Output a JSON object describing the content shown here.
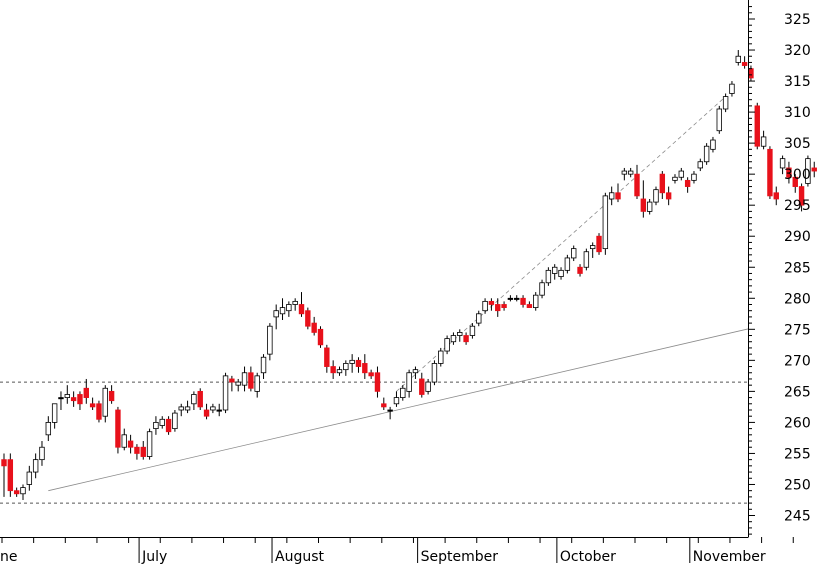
{
  "chart_data": {
    "type": "candlestick",
    "title": "",
    "xlabel": "",
    "ylabel": "",
    "ylim": [
      240,
      328
    ],
    "y_ticks": [
      245,
      250,
      255,
      260,
      265,
      270,
      275,
      280,
      285,
      290,
      295,
      300,
      305,
      310,
      315,
      320,
      325
    ],
    "month_labels": [
      "June",
      "July",
      "August",
      "September",
      "October",
      "November"
    ],
    "axis_side": "right",
    "grid": false,
    "colors": {
      "up": "#ffffff",
      "down": "#e8111b",
      "doji": "#000000",
      "outline": "#000000",
      "reference": "#555555"
    },
    "horizontal_levels": [
      266.5,
      247
    ],
    "trendlines": [
      {
        "from": [
          "Jun 10",
          249
        ],
        "to": [
          "Nov 29",
          278
        ]
      },
      {
        "from": [
          "Aug 26",
          265
        ],
        "to": [
          "Nov 08",
          312.5
        ]
      }
    ],
    "candles": [
      {
        "date": "Jun 01",
        "o": 254,
        "h": 255,
        "l": 248,
        "c": 253
      },
      {
        "date": "Jun 02",
        "o": 254,
        "h": 255,
        "l": 248,
        "c": 249
      },
      {
        "date": "Jun 03",
        "o": 249,
        "h": 249.5,
        "l": 248,
        "c": 248.5
      },
      {
        "date": "Jun 06",
        "o": 248.5,
        "h": 250,
        "l": 247.5,
        "c": 249.5
      },
      {
        "date": "Jun 07",
        "o": 250,
        "h": 253,
        "l": 249,
        "c": 252
      },
      {
        "date": "Jun 08",
        "o": 252,
        "h": 255,
        "l": 251,
        "c": 254
      },
      {
        "date": "Jun 09",
        "o": 254,
        "h": 257,
        "l": 253,
        "c": 256
      },
      {
        "date": "Jun 10",
        "o": 258,
        "h": 261,
        "l": 257,
        "c": 260
      },
      {
        "date": "Jun 13",
        "o": 260,
        "h": 263,
        "l": 259,
        "c": 263
      },
      {
        "date": "Jun 14",
        "o": 264,
        "h": 265,
        "l": 262,
        "c": 264
      },
      {
        "date": "Jun 15",
        "o": 264,
        "h": 266,
        "l": 263,
        "c": 264.5
      },
      {
        "date": "Jun 16",
        "o": 264,
        "h": 265,
        "l": 262.5,
        "c": 263.5
      },
      {
        "date": "Jun 17",
        "o": 264.5,
        "h": 265,
        "l": 262,
        "c": 263
      },
      {
        "date": "Jun 20",
        "o": 265.5,
        "h": 267,
        "l": 263,
        "c": 264
      },
      {
        "date": "Jun 21",
        "o": 263,
        "h": 264,
        "l": 262,
        "c": 262.5
      },
      {
        "date": "Jun 22",
        "o": 263,
        "h": 263.5,
        "l": 260,
        "c": 260.5
      },
      {
        "date": "Jun 23",
        "o": 261,
        "h": 266,
        "l": 260,
        "c": 265.5
      },
      {
        "date": "Jun 24",
        "o": 265,
        "h": 266,
        "l": 263,
        "c": 263.5
      },
      {
        "date": "Jun 27",
        "o": 262,
        "h": 262.5,
        "l": 255,
        "c": 256
      },
      {
        "date": "Jun 28",
        "o": 256,
        "h": 259,
        "l": 255.5,
        "c": 258
      },
      {
        "date": "Jun 29",
        "o": 257,
        "h": 258,
        "l": 255,
        "c": 256
      },
      {
        "date": "Jun 30",
        "o": 256,
        "h": 256.5,
        "l": 254,
        "c": 255
      },
      {
        "date": "Jul 01",
        "o": 256,
        "h": 257,
        "l": 254,
        "c": 254.5
      },
      {
        "date": "Jul 04",
        "o": 254.5,
        "h": 259,
        "l": 254,
        "c": 258.5
      },
      {
        "date": "Jul 05",
        "o": 259,
        "h": 261,
        "l": 258,
        "c": 260
      },
      {
        "date": "Jul 06",
        "o": 259.5,
        "h": 261,
        "l": 259,
        "c": 260.5
      },
      {
        "date": "Jul 07",
        "o": 260.5,
        "h": 261,
        "l": 258,
        "c": 258.5
      },
      {
        "date": "Jul 08",
        "o": 259,
        "h": 262,
        "l": 258.5,
        "c": 261.5
      },
      {
        "date": "Jul 11",
        "o": 262,
        "h": 263,
        "l": 261,
        "c": 262.5
      },
      {
        "date": "Jul 12",
        "o": 262,
        "h": 263.5,
        "l": 261.5,
        "c": 262.5
      },
      {
        "date": "Jul 13",
        "o": 263,
        "h": 265,
        "l": 262,
        "c": 264.5
      },
      {
        "date": "Jul 14",
        "o": 265,
        "h": 265.5,
        "l": 262,
        "c": 262.5
      },
      {
        "date": "Jul 15",
        "o": 262,
        "h": 263,
        "l": 260.5,
        "c": 261
      },
      {
        "date": "Jul 18",
        "o": 262,
        "h": 263,
        "l": 261.5,
        "c": 262.5
      },
      {
        "date": "Jul 19",
        "o": 262,
        "h": 263,
        "l": 261,
        "c": 262
      },
      {
        "date": "Jul 20",
        "o": 262,
        "h": 268,
        "l": 261.5,
        "c": 267.5
      },
      {
        "date": "Jul 21",
        "o": 267,
        "h": 267.5,
        "l": 265,
        "c": 266.5
      },
      {
        "date": "Jul 22",
        "o": 266,
        "h": 267,
        "l": 265,
        "c": 266.5
      },
      {
        "date": "Jul 25",
        "o": 266,
        "h": 269,
        "l": 265,
        "c": 268
      },
      {
        "date": "Jul 26",
        "o": 268,
        "h": 269,
        "l": 265,
        "c": 265.5
      },
      {
        "date": "Jul 27",
        "o": 265,
        "h": 268,
        "l": 264,
        "c": 267.5
      },
      {
        "date": "Jul 28",
        "o": 268,
        "h": 271,
        "l": 267,
        "c": 270.5
      },
      {
        "date": "Jul 29",
        "o": 271,
        "h": 276,
        "l": 270,
        "c": 275.5
      },
      {
        "date": "Aug 01",
        "o": 277,
        "h": 279,
        "l": 275,
        "c": 278
      },
      {
        "date": "Aug 02",
        "o": 277.5,
        "h": 280,
        "l": 276.5,
        "c": 278.5
      },
      {
        "date": "Aug 03",
        "o": 278,
        "h": 279.5,
        "l": 277,
        "c": 279
      },
      {
        "date": "Aug 04",
        "o": 279,
        "h": 280,
        "l": 278,
        "c": 279.5
      },
      {
        "date": "Aug 05",
        "o": 279,
        "h": 281,
        "l": 277,
        "c": 277.5
      },
      {
        "date": "Aug 08",
        "o": 278,
        "h": 278.5,
        "l": 275,
        "c": 275.5
      },
      {
        "date": "Aug 09",
        "o": 276,
        "h": 277,
        "l": 274,
        "c": 274.5
      },
      {
        "date": "Aug 10",
        "o": 275,
        "h": 275.5,
        "l": 272,
        "c": 272.5
      },
      {
        "date": "Aug 11",
        "o": 272,
        "h": 272.5,
        "l": 268,
        "c": 269
      },
      {
        "date": "Aug 12",
        "o": 269,
        "h": 270,
        "l": 267,
        "c": 268
      },
      {
        "date": "Aug 15",
        "o": 268,
        "h": 269,
        "l": 267.5,
        "c": 268.5
      },
      {
        "date": "Aug 16",
        "o": 268.5,
        "h": 270,
        "l": 267.5,
        "c": 269.5
      },
      {
        "date": "Aug 17",
        "o": 269.5,
        "h": 271,
        "l": 268,
        "c": 270
      },
      {
        "date": "Aug 18",
        "o": 270,
        "h": 270.5,
        "l": 268,
        "c": 269
      },
      {
        "date": "Aug 19",
        "o": 269.5,
        "h": 271,
        "l": 267,
        "c": 268
      },
      {
        "date": "Aug 22",
        "o": 268,
        "h": 268.5,
        "l": 267,
        "c": 267.5
      },
      {
        "date": "Aug 23",
        "o": 268,
        "h": 269,
        "l": 264,
        "c": 265
      },
      {
        "date": "Aug 24",
        "o": 263,
        "h": 264,
        "l": 262,
        "c": 262.5
      },
      {
        "date": "Aug 25",
        "o": 262,
        "h": 262.5,
        "l": 260.5,
        "c": 262
      },
      {
        "date": "Aug 26",
        "o": 263,
        "h": 265,
        "l": 262.5,
        "c": 264
      },
      {
        "date": "Aug 29",
        "o": 264,
        "h": 266,
        "l": 263.5,
        "c": 265.5
      },
      {
        "date": "Aug 30",
        "o": 265,
        "h": 268.5,
        "l": 264,
        "c": 268
      },
      {
        "date": "Aug 31",
        "o": 268,
        "h": 269,
        "l": 267,
        "c": 268.5
      },
      {
        "date": "Sep 01",
        "o": 267,
        "h": 268,
        "l": 264,
        "c": 264.5
      },
      {
        "date": "Sep 02",
        "o": 265,
        "h": 267,
        "l": 264.5,
        "c": 266.5
      },
      {
        "date": "Sep 05",
        "o": 266.5,
        "h": 270,
        "l": 266,
        "c": 269.5
      },
      {
        "date": "Sep 06",
        "o": 269.5,
        "h": 272,
        "l": 269,
        "c": 271.5
      },
      {
        "date": "Sep 07",
        "o": 271.5,
        "h": 274,
        "l": 271,
        "c": 273.5
      },
      {
        "date": "Sep 08",
        "o": 273,
        "h": 274.5,
        "l": 272.5,
        "c": 274
      },
      {
        "date": "Sep 09",
        "o": 274,
        "h": 275,
        "l": 273,
        "c": 274.5
      },
      {
        "date": "Sep 12",
        "o": 274,
        "h": 274.5,
        "l": 272.5,
        "c": 273
      },
      {
        "date": "Sep 13",
        "o": 274,
        "h": 276,
        "l": 273.5,
        "c": 275.5
      },
      {
        "date": "Sep 14",
        "o": 276,
        "h": 278,
        "l": 275.5,
        "c": 277.5
      },
      {
        "date": "Sep 15",
        "o": 278,
        "h": 280,
        "l": 277.5,
        "c": 279.5
      },
      {
        "date": "Sep 16",
        "o": 279.5,
        "h": 280,
        "l": 278,
        "c": 279
      },
      {
        "date": "Sep 19",
        "o": 279,
        "h": 280,
        "l": 277,
        "c": 278
      },
      {
        "date": "Sep 20",
        "o": 279,
        "h": 279.5,
        "l": 278,
        "c": 278.5
      },
      {
        "date": "Sep 21",
        "o": 280,
        "h": 280.5,
        "l": 279.5,
        "c": 280
      },
      {
        "date": "Sep 22",
        "o": 280,
        "h": 280.5,
        "l": 279.5,
        "c": 280
      },
      {
        "date": "Sep 23",
        "o": 280,
        "h": 280.5,
        "l": 278.5,
        "c": 279
      },
      {
        "date": "Sep 26",
        "o": 279,
        "h": 279.5,
        "l": 278.5,
        "c": 278.5
      },
      {
        "date": "Sep 27",
        "o": 278.5,
        "h": 281,
        "l": 278,
        "c": 280.5
      },
      {
        "date": "Sep 28",
        "o": 280.5,
        "h": 283,
        "l": 280,
        "c": 282.5
      },
      {
        "date": "Sep 29",
        "o": 282.5,
        "h": 285,
        "l": 282,
        "c": 284.5
      },
      {
        "date": "Sep 30",
        "o": 284,
        "h": 285.5,
        "l": 283,
        "c": 285
      },
      {
        "date": "Oct 03",
        "o": 283.5,
        "h": 285,
        "l": 283,
        "c": 284.5
      },
      {
        "date": "Oct 04",
        "o": 284.5,
        "h": 287,
        "l": 284,
        "c": 286.5
      },
      {
        "date": "Oct 05",
        "o": 286.5,
        "h": 288.5,
        "l": 286,
        "c": 288
      },
      {
        "date": "Oct 06",
        "o": 285,
        "h": 285.5,
        "l": 283.5,
        "c": 284
      },
      {
        "date": "Oct 07",
        "o": 285,
        "h": 288,
        "l": 284.5,
        "c": 287.5
      },
      {
        "date": "Oct 10",
        "o": 288,
        "h": 289,
        "l": 286.5,
        "c": 288.5
      },
      {
        "date": "Oct 11",
        "o": 290,
        "h": 290.5,
        "l": 287,
        "c": 287.5
      },
      {
        "date": "Oct 12",
        "o": 288,
        "h": 297,
        "l": 287,
        "c": 296.5
      },
      {
        "date": "Oct 13",
        "o": 296,
        "h": 298,
        "l": 295,
        "c": 297
      },
      {
        "date": "Oct 14",
        "o": 297,
        "h": 298.5,
        "l": 295.5,
        "c": 296
      },
      {
        "date": "Oct 17",
        "o": 300,
        "h": 301,
        "l": 299,
        "c": 300.5
      },
      {
        "date": "Oct 18",
        "o": 300,
        "h": 301,
        "l": 299.5,
        "c": 300.5
      },
      {
        "date": "Oct 19",
        "o": 300,
        "h": 301.5,
        "l": 296,
        "c": 296.5
      },
      {
        "date": "Oct 20",
        "o": 296,
        "h": 299,
        "l": 293,
        "c": 294
      },
      {
        "date": "Oct 21",
        "o": 294,
        "h": 296,
        "l": 293.5,
        "c": 295.5
      },
      {
        "date": "Oct 24",
        "o": 295.5,
        "h": 298,
        "l": 295,
        "c": 297.5
      },
      {
        "date": "Oct 25",
        "o": 300,
        "h": 300.5,
        "l": 296,
        "c": 297
      },
      {
        "date": "Oct 26",
        "o": 297,
        "h": 298,
        "l": 295,
        "c": 296
      },
      {
        "date": "Oct 27",
        "o": 299,
        "h": 300,
        "l": 298.5,
        "c": 299.5
      },
      {
        "date": "Oct 28",
        "o": 299.5,
        "h": 301,
        "l": 299,
        "c": 300.5
      },
      {
        "date": "Oct 31",
        "o": 299,
        "h": 299.5,
        "l": 297,
        "c": 298
      },
      {
        "date": "Nov 01",
        "o": 299,
        "h": 300.5,
        "l": 298.5,
        "c": 300
      },
      {
        "date": "Nov 02",
        "o": 301,
        "h": 302.5,
        "l": 300.5,
        "c": 302
      },
      {
        "date": "Nov 03",
        "o": 302,
        "h": 305,
        "l": 301.5,
        "c": 304.5
      },
      {
        "date": "Nov 04",
        "o": 304,
        "h": 306,
        "l": 303.5,
        "c": 305.5
      },
      {
        "date": "Nov 07",
        "o": 307,
        "h": 311,
        "l": 306.5,
        "c": 310.5
      },
      {
        "date": "Nov 08",
        "o": 310.5,
        "h": 313,
        "l": 310,
        "c": 312.5
      },
      {
        "date": "Nov 09",
        "o": 313,
        "h": 315,
        "l": 312.5,
        "c": 314.5
      },
      {
        "date": "Nov 10",
        "o": 318,
        "h": 320,
        "l": 317.5,
        "c": 319
      },
      {
        "date": "Nov 11",
        "o": 318,
        "h": 319,
        "l": 317,
        "c": 317.5
      },
      {
        "date": "Nov 14",
        "o": 317,
        "h": 317.5,
        "l": 315,
        "c": 315.5
      },
      {
        "date": "Nov 15",
        "o": 311,
        "h": 311.5,
        "l": 304,
        "c": 304.5
      },
      {
        "date": "Nov 16",
        "o": 304.5,
        "h": 307,
        "l": 304,
        "c": 306
      },
      {
        "date": "Nov 17",
        "o": 304,
        "h": 304.5,
        "l": 296,
        "c": 296.5
      },
      {
        "date": "Nov 18",
        "o": 297,
        "h": 298,
        "l": 295,
        "c": 296
      },
      {
        "date": "Nov 21",
        "o": 301,
        "h": 303,
        "l": 300,
        "c": 302.5
      },
      {
        "date": "Nov 22",
        "o": 301,
        "h": 302,
        "l": 298.5,
        "c": 299.5
      },
      {
        "date": "Nov 23",
        "o": 299.5,
        "h": 300,
        "l": 297,
        "c": 298
      },
      {
        "date": "Nov 24",
        "o": 298,
        "h": 298.5,
        "l": 294,
        "c": 295
      },
      {
        "date": "Nov 25",
        "o": 298.5,
        "h": 303,
        "l": 298,
        "c": 302.5
      },
      {
        "date": "Nov 28",
        "o": 301,
        "h": 302,
        "l": 299.5,
        "c": 300.5
      }
    ]
  }
}
